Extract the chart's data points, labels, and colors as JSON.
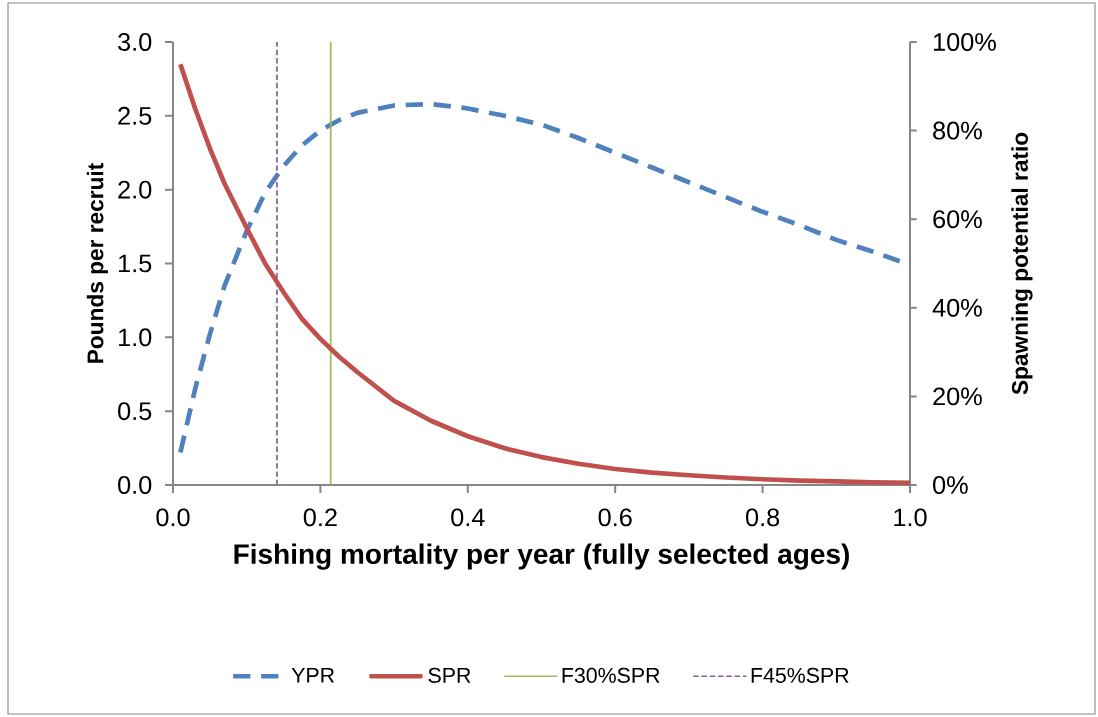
{
  "chart_data": {
    "type": "line",
    "xlabel": "Fishing mortality per year (fully selected ages)",
    "ylabel": "Pounds per recruit",
    "y2label": "Spawning potential ratio",
    "xlim": [
      0,
      1.0
    ],
    "xticks": [
      {
        "value": 0,
        "label": "0.0"
      },
      {
        "value": 0.2,
        "label": "0.2"
      },
      {
        "value": 0.4,
        "label": "0.4"
      },
      {
        "value": 0.6,
        "label": "0.6"
      },
      {
        "value": 0.8,
        "label": "0.8"
      },
      {
        "value": 1.0,
        "label": "1.0"
      }
    ],
    "ylim": [
      0,
      3.0
    ],
    "yticks": [
      {
        "value": 0,
        "label": "0.0"
      },
      {
        "value": 0.5,
        "label": "0.5"
      },
      {
        "value": 1.0,
        "label": "1.0"
      },
      {
        "value": 1.5,
        "label": "1.5"
      },
      {
        "value": 2.0,
        "label": "2.0"
      },
      {
        "value": 2.5,
        "label": "2.5"
      },
      {
        "value": 3.0,
        "label": "3.0"
      }
    ],
    "y2lim": [
      0,
      100
    ],
    "y2ticks": [
      {
        "value": 0,
        "label": "0%"
      },
      {
        "value": 20,
        "label": "20%"
      },
      {
        "value": 40,
        "label": "40%"
      },
      {
        "value": 60,
        "label": "60%"
      },
      {
        "value": 80,
        "label": "80%"
      },
      {
        "value": 100,
        "label": "100%"
      }
    ],
    "x": [
      0.01,
      0.03,
      0.05,
      0.07,
      0.1,
      0.125,
      0.15,
      0.175,
      0.2,
      0.225,
      0.25,
      0.3,
      0.35,
      0.4,
      0.45,
      0.5,
      0.55,
      0.6,
      0.65,
      0.7,
      0.75,
      0.8,
      0.85,
      0.9,
      0.95,
      1.0
    ],
    "series": [
      {
        "name": "YPR",
        "color": "#4f81bd",
        "line_style": "dashed",
        "values": [
          0.22,
          0.65,
          1.02,
          1.35,
          1.72,
          1.98,
          2.16,
          2.3,
          2.4,
          2.47,
          2.52,
          2.57,
          2.58,
          2.55,
          2.5,
          2.44,
          2.35,
          2.25,
          2.15,
          2.05,
          1.95,
          1.85,
          1.76,
          1.66,
          1.58,
          1.49
        ]
      },
      {
        "name": "SPR",
        "color": "#c0504d",
        "line_style": "solid",
        "axis": "y2",
        "values": [
          95,
          85,
          76,
          68,
          58,
          50,
          43.5,
          37.5,
          33,
          29,
          25.5,
          19,
          14.5,
          11,
          8.3,
          6.3,
          4.8,
          3.6,
          2.8,
          2.2,
          1.7,
          1.3,
          1.0,
          0.8,
          0.6,
          0.5
        ]
      }
    ],
    "ref_lines": [
      {
        "axis": "x",
        "value": 0.214,
        "label": "F30%SPR",
        "color": "#9bbb59",
        "line_style": "solid"
      },
      {
        "axis": "x",
        "value": 0.141,
        "label": "F45%SPR",
        "color": "#8064a2",
        "line_style": "dotted"
      }
    ],
    "legend": "bottom",
    "grid": false,
    "marker": "none"
  }
}
